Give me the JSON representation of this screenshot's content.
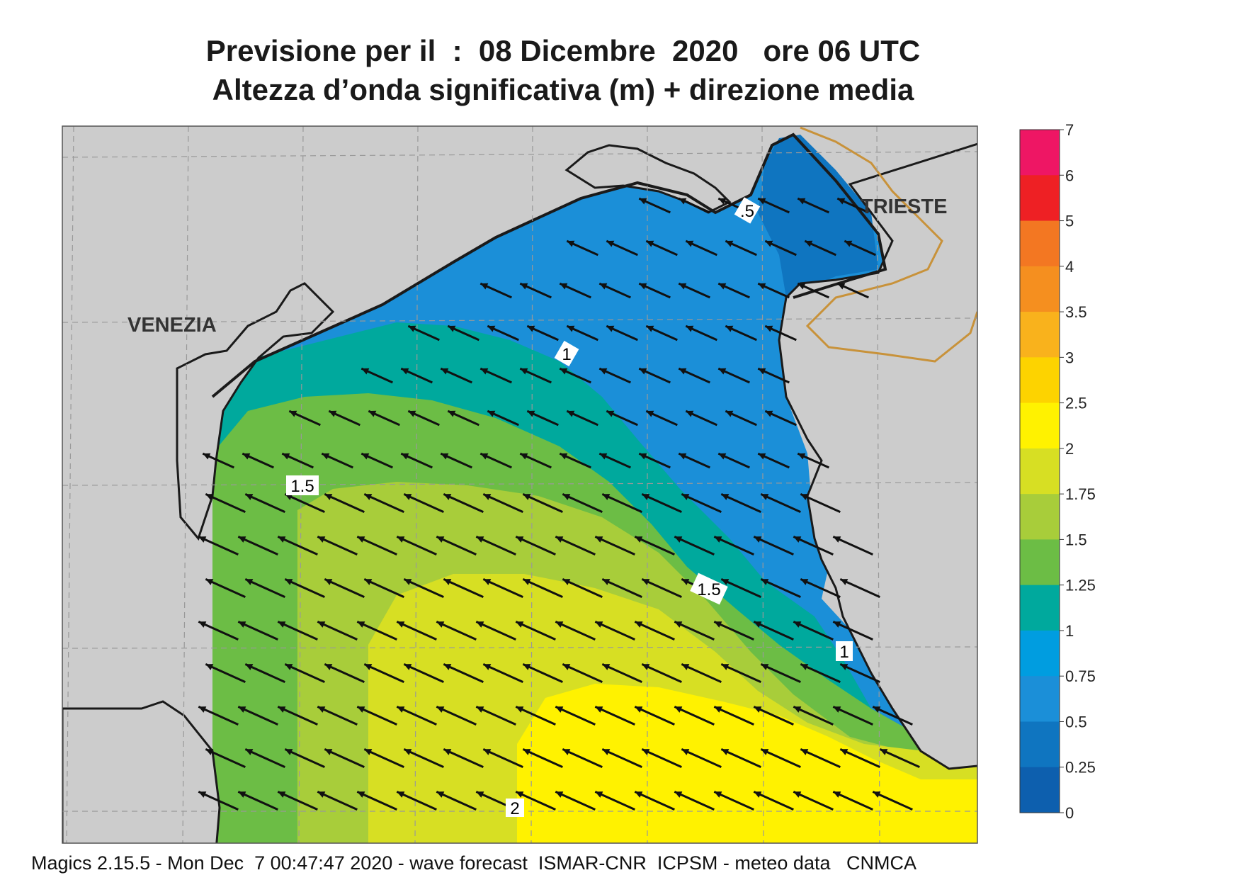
{
  "title_line1": "Previsione per il  :  08 Dicembre  2020   ore 06 UTC",
  "title_line2": "Altezza d’onda significativa (m) + direzione media",
  "footer": "Magics 2.15.5 - Mon Dec  7 00:47:47 2020 - wave forecast  ISMAR-CNR  ICPSM - meteo data   CNMCA",
  "cities": [
    "VENEZIA",
    "TRIESTE"
  ],
  "legend": {
    "labels": [
      "7",
      "6",
      "5",
      "4",
      "3.5",
      "3",
      "2.5",
      "2",
      "1.75",
      "1.5",
      "1.25",
      "1",
      "0.75",
      "0.5",
      "0.25",
      "0"
    ],
    "colors": [
      "#ee1664",
      "#ee2024",
      "#f37722",
      "#f58f1f",
      "#f9b21c",
      "#fdd300",
      "#fff200",
      "#d7df23",
      "#a8cd3a",
      "#6cbd45",
      "#00a99d",
      "#009de0",
      "#1b8fd8",
      "#0f75c0",
      "#0d5fae"
    ]
  },
  "contour_labels": [
    ".5",
    "1",
    "1.5",
    "1.5",
    "1",
    "2"
  ],
  "colors": {
    "land": "#cccccc",
    "coast": "#1a1a1a",
    "border": "#c8923a",
    "grid": "#999999"
  },
  "arrow_direction": "northwest"
}
